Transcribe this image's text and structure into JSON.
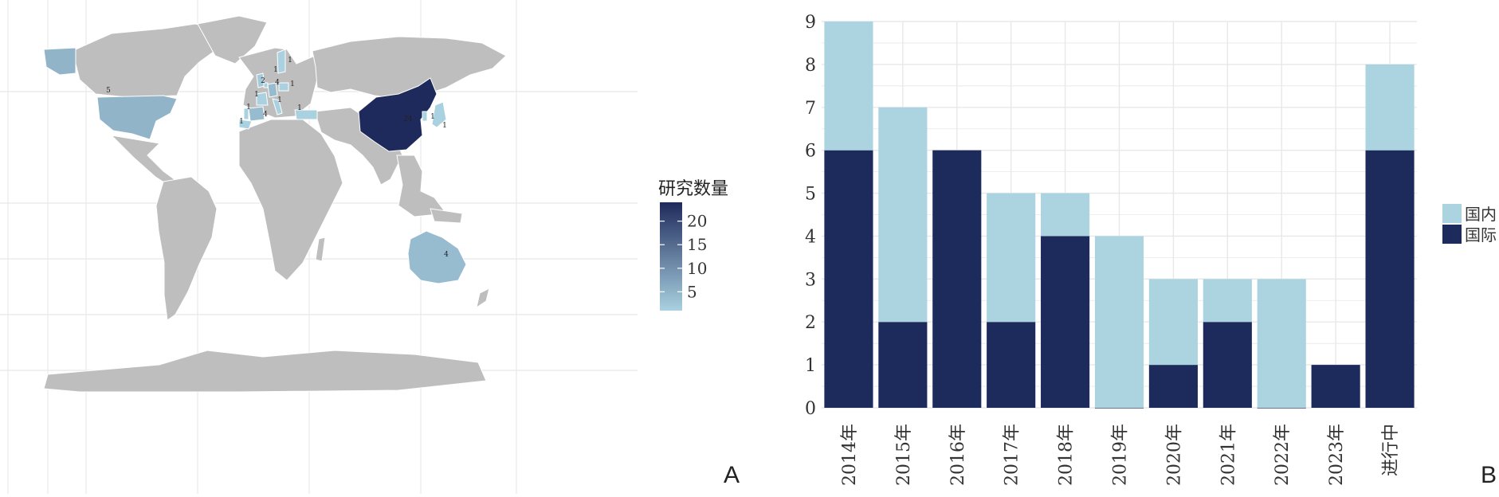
{
  "panel_labels": {
    "map": "A",
    "bar": "B"
  },
  "colors": {
    "land": "#bebebe",
    "border": "#ffffff",
    "grid": "#e8e8e8",
    "scale_low": "#a9d1e0",
    "scale_high": "#1f2a5c",
    "domestic": "#abd4e0",
    "international": "#1d2a5c",
    "axis_text": "#333333"
  },
  "chart_data": [
    {
      "type": "choropleth",
      "legend": {
        "title": "研究数量",
        "ticks": [
          "20",
          "15",
          "10",
          "5"
        ],
        "tick_values": [
          20,
          15,
          10,
          5
        ],
        "min": 1,
        "max": 24
      },
      "regions": [
        {
          "name": "China",
          "value": 24,
          "label": "24"
        },
        {
          "name": "United States",
          "value": 5,
          "label": "5"
        },
        {
          "name": "Australia",
          "value": 4,
          "label": "4"
        },
        {
          "name": "Germany",
          "value": 4,
          "label": "4"
        },
        {
          "name": "Spain",
          "value": 4,
          "label": "4"
        },
        {
          "name": "United Kingdom",
          "value": 2,
          "label": "2"
        },
        {
          "name": "Sweden",
          "value": 1,
          "label": "1"
        },
        {
          "name": "Poland",
          "value": 1,
          "label": "1"
        },
        {
          "name": "Netherlands",
          "value": 1,
          "label": "1"
        },
        {
          "name": "France",
          "value": 1,
          "label": "1"
        },
        {
          "name": "Portugal",
          "value": 1,
          "label": "1"
        },
        {
          "name": "Morocco",
          "value": 1,
          "label": "1"
        },
        {
          "name": "Italy",
          "value": 1,
          "label": "1"
        },
        {
          "name": "Turkey",
          "value": 1,
          "label": "1"
        },
        {
          "name": "South Korea",
          "value": 1,
          "label": "1"
        },
        {
          "name": "Japan",
          "value": 1,
          "label": "1"
        }
      ]
    },
    {
      "type": "bar",
      "stacked": true,
      "categories": [
        "2014年",
        "2015年",
        "2016年",
        "2017年",
        "2018年",
        "2019年",
        "2020年",
        "2021年",
        "2022年",
        "2023年",
        "进行中"
      ],
      "series": [
        {
          "name": "国际",
          "values": [
            6,
            2,
            6,
            2,
            4,
            0,
            1,
            2,
            0,
            1,
            6
          ]
        },
        {
          "name": "国内",
          "values": [
            3,
            5,
            0,
            3,
            1,
            4,
            2,
            1,
            3,
            0,
            2
          ]
        }
      ],
      "legend_order": [
        "国内",
        "国际"
      ],
      "y_ticks": [
        "0",
        "1",
        "2",
        "3",
        "4",
        "5",
        "6",
        "7",
        "8",
        "9"
      ],
      "ylim": [
        0,
        9
      ],
      "grid": true,
      "legend_position": "right"
    }
  ]
}
